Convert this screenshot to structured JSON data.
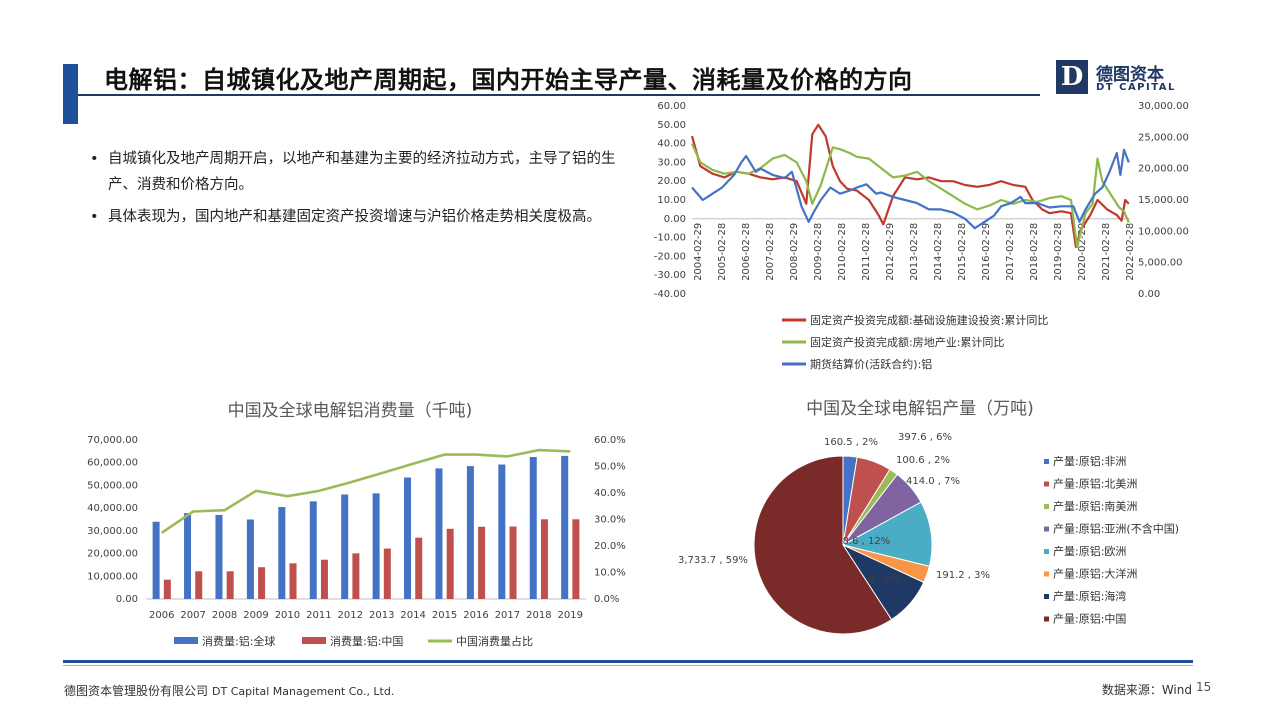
{
  "header": {
    "title": "电解铝：自城镇化及地产周期起，国内开始主导产量、消耗量及价格的方向",
    "logo_mark": "D",
    "logo_cn": "德图资本",
    "logo_en": "DT CAPITAL"
  },
  "bullets": [
    "自城镇化及地产周期开启，以地产和基建为主要的经济拉动方式，主导了铝的生产、消费和价格方向。",
    "具体表现为，国内地产和基建固定资产投资增速与沪铝价格走势相关度极高。"
  ],
  "footer": {
    "company_cn": "德图资本管理股份有限公司",
    "company_en": "DT Capital Management Co., Ltd.",
    "source": "数据来源：Wind",
    "page": "15"
  },
  "chart_data": [
    {
      "type": "line",
      "title": "",
      "x_tick_labels": [
        "2004-02-29",
        "2005-02-28",
        "2006-02-28",
        "2007-02-28",
        "2008-02-29",
        "2009-02-28",
        "2010-02-28",
        "2011-02-28",
        "2012-02-29",
        "2013-02-28",
        "2014-02-28",
        "2015-02-28",
        "2016-02-29",
        "2017-02-28",
        "2018-02-28",
        "2019-02-28",
        "2020-02-29",
        "2021-02-28",
        "2022-02-28"
      ],
      "y_left": {
        "ticks": [
          "60.00",
          "50.00",
          "40.00",
          "30.00",
          "20.00",
          "10.00",
          "0.00",
          "-10.00",
          "-20.00",
          "-30.00",
          "-40.00"
        ],
        "ylim": [
          -40,
          60
        ]
      },
      "y_right": {
        "ticks": [
          "30,000.00",
          "25,000.00",
          "20,000.00",
          "15,000.00",
          "10,000.00",
          "5,000.00",
          "0.00"
        ],
        "ylim": [
          0,
          30000
        ]
      },
      "series": [
        {
          "name": "固定资产投资完成额:基础设施建设投资:累计同比",
          "color": "#c0392b",
          "axis": "left",
          "x": [
            2004.15,
            2004.5,
            2005.0,
            2005.5,
            2006.0,
            2006.5,
            2007.0,
            2007.5,
            2008.0,
            2008.5,
            2008.9,
            2009.15,
            2009.4,
            2009.7,
            2010.0,
            2010.3,
            2010.6,
            2011.0,
            2011.5,
            2011.9,
            2012.1,
            2012.5,
            2013.0,
            2013.5,
            2014.0,
            2014.5,
            2015.0,
            2015.5,
            2016.0,
            2016.5,
            2017.0,
            2017.5,
            2018.0,
            2018.3,
            2018.7,
            2019.0,
            2019.5,
            2019.9,
            2020.1,
            2020.3,
            2020.7,
            2021.0,
            2021.4,
            2021.8,
            2022.0,
            2022.15,
            2022.3
          ],
          "y": [
            44,
            28,
            24,
            22,
            25,
            24,
            22,
            21,
            22,
            20,
            8,
            45,
            50,
            44,
            28,
            20,
            16,
            15,
            10,
            2,
            -3,
            12,
            22,
            21,
            22,
            20,
            20,
            18,
            17,
            18,
            20,
            18,
            17,
            10,
            5,
            3,
            4,
            3,
            -15,
            -6,
            2,
            10,
            5,
            2,
            -1,
            10,
            8
          ]
        },
        {
          "name": "固定资产投资完成额:房地产业:累计同比",
          "color": "#8db84a",
          "axis": "left",
          "x": [
            2004.15,
            2004.5,
            2005.0,
            2005.5,
            2006.0,
            2006.5,
            2007.0,
            2007.5,
            2008.0,
            2008.5,
            2008.9,
            2009.15,
            2009.5,
            2010.0,
            2010.3,
            2010.7,
            2011.0,
            2011.5,
            2012.0,
            2012.5,
            2013.0,
            2013.5,
            2014.0,
            2014.5,
            2015.0,
            2015.5,
            2016.0,
            2016.5,
            2017.0,
            2017.5,
            2018.0,
            2018.5,
            2019.0,
            2019.5,
            2019.9,
            2020.15,
            2020.5,
            2020.8,
            2021.0,
            2021.2,
            2021.5,
            2021.9,
            2022.1,
            2022.3
          ],
          "y": [
            40,
            30,
            26,
            24,
            25,
            24,
            27,
            32,
            34,
            30,
            20,
            8,
            18,
            38,
            37,
            35,
            33,
            32,
            27,
            22,
            23,
            25,
            20,
            16,
            12,
            8,
            5,
            7,
            10,
            8,
            10,
            9,
            11,
            12,
            10,
            -15,
            3,
            8,
            32,
            20,
            14,
            6,
            4,
            -2
          ]
        },
        {
          "name": "期货结算价(活跃合约):铝",
          "color": "#4472c4",
          "axis": "right",
          "x": [
            2004.15,
            2004.6,
            2005.0,
            2005.4,
            2005.9,
            2006.2,
            2006.4,
            2006.8,
            2007.0,
            2007.5,
            2008.0,
            2008.3,
            2008.7,
            2009.0,
            2009.2,
            2009.5,
            2009.9,
            2010.3,
            2010.7,
            2011.0,
            2011.4,
            2011.8,
            2012.0,
            2012.5,
            2013.0,
            2013.5,
            2014.0,
            2014.5,
            2015.0,
            2015.5,
            2015.9,
            2016.3,
            2016.7,
            2017.0,
            2017.4,
            2017.8,
            2018.0,
            2018.5,
            2019.0,
            2019.5,
            2020.0,
            2020.25,
            2020.5,
            2020.9,
            2021.2,
            2021.5,
            2021.8,
            2021.95,
            2022.1,
            2022.3
          ],
          "y": [
            17000,
            15000,
            16000,
            17000,
            19000,
            21000,
            22000,
            19500,
            20000,
            19000,
            18500,
            19500,
            14000,
            11500,
            13000,
            15000,
            17000,
            16000,
            16500,
            17000,
            17500,
            16000,
            16200,
            15500,
            15000,
            14500,
            13500,
            13500,
            13000,
            12000,
            10500,
            11500,
            12500,
            14000,
            14500,
            15500,
            14500,
            14500,
            13800,
            14000,
            14000,
            11500,
            13500,
            16000,
            17000,
            19500,
            22500,
            19000,
            23000,
            21000
          ]
        }
      ]
    },
    {
      "type": "bar",
      "title": "中国及全球电解铝消费量（千吨)",
      "categories": [
        "2006",
        "2007",
        "2008",
        "2009",
        "2010",
        "2011",
        "2012",
        "2013",
        "2014",
        "2015",
        "2016",
        "2017",
        "2018",
        "2019"
      ],
      "y_left": {
        "ticks": [
          "70,000.00",
          "60,000.00",
          "50,000.00",
          "40,000.00",
          "30,000.00",
          "20,000.00",
          "10,000.00",
          "0.00"
        ],
        "ylim": [
          0,
          70000
        ]
      },
      "y_right": {
        "ticks": [
          "60.0%",
          "50.0%",
          "40.0%",
          "30.0%",
          "20.0%",
          "10.0%",
          "0.0%"
        ],
        "ylim": [
          0,
          60
        ]
      },
      "series": [
        {
          "name": "消费量:铝:全球",
          "color": "#4472c4",
          "kind": "bar",
          "values": [
            34000,
            37800,
            37000,
            35000,
            40500,
            43000,
            46000,
            46500,
            53500,
            57500,
            58500,
            59200,
            62500,
            63000
          ]
        },
        {
          "name": "消费量:铝:中国",
          "color": "#c0504d",
          "kind": "bar",
          "values": [
            8500,
            12200,
            12200,
            14000,
            15700,
            17300,
            20100,
            22200,
            27000,
            30900,
            31800,
            31900,
            35100,
            35100
          ]
        },
        {
          "name": "中国消费量占比",
          "color": "#9bbb59",
          "kind": "line",
          "axis": "right",
          "values": [
            25,
            33,
            33.5,
            40.8,
            38.8,
            40.8,
            44,
            47.5,
            51,
            54.5,
            54.5,
            53.8,
            56.2,
            55.7
          ]
        }
      ]
    },
    {
      "type": "pie",
      "title": "中国及全球电解铝产量（万吨)",
      "slices": [
        {
          "name": "产量:原铝:非洲",
          "value": 160.5,
          "pct": 2,
          "label": "160.5 , 2%",
          "color": "#4472c4"
        },
        {
          "name": "产量:原铝:北美洲",
          "value": 397.6,
          "pct": 6,
          "label": "397.6 , 6%",
          "color": "#c0504d"
        },
        {
          "name": "产量:原铝:南美洲",
          "value": 100.6,
          "pct": 2,
          "label": "100.6 , 2%",
          "color": "#9bbb59"
        },
        {
          "name": "产量:原铝:亚洲(不含中国)",
          "value": 414.0,
          "pct": 7,
          "label": "414.0 , 7%",
          "color": "#8064a2"
        },
        {
          "name": "产量:原铝:欧洲",
          "value": 748.6,
          "pct": 12,
          "label": "748.6 , 12%",
          "color": "#4bacc6"
        },
        {
          "name": "产量:原铝:大洋洲",
          "value": 191.2,
          "pct": 3,
          "label": "191.2 , 3%",
          "color": "#f79646"
        },
        {
          "name": "产量:原铝:海湾",
          "value": 562.8,
          "pct": 9,
          "label": "562.8 , 9%",
          "color": "#1f3864"
        },
        {
          "name": "产量:原铝:中国",
          "value": 3733.7,
          "pct": 59,
          "label": "3,733.7 , 59%",
          "color": "#7b2a2a"
        }
      ]
    }
  ]
}
